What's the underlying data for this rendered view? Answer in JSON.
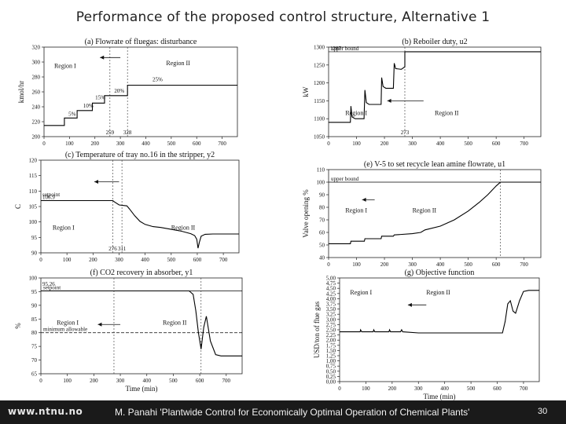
{
  "page": {
    "title": "Performance of the proposed control structure, Alternative 1",
    "footer_url": "www.ntnu.no",
    "footer_citation": "M. Panahi 'Plantwide Control for Economically Optimal Operation of Chemical Plants'",
    "page_number": "30"
  },
  "chart_data": [
    {
      "type": "line",
      "title": "(a) Flowrate of fluegas: disturbance",
      "xlabel": "",
      "ylabel": "kmol/hr",
      "xlim": [
        0,
        760
      ],
      "ylim": [
        200,
        320
      ],
      "xticks": [
        0,
        100,
        200,
        300,
        400,
        500,
        600,
        700
      ],
      "yticks": [
        200,
        220,
        240,
        260,
        280,
        300,
        320
      ],
      "series": [
        {
          "color": "#000000",
          "dash": "",
          "points": [
            [
              0,
              215
            ],
            [
              80,
              215
            ],
            [
              80,
              225
            ],
            [
              130,
              225
            ],
            [
              130,
              235
            ],
            [
              190,
              235
            ],
            [
              190,
              245
            ],
            [
              238,
              245
            ],
            [
              238,
              255
            ],
            [
              328,
              255
            ],
            [
              328,
              269
            ],
            [
              760,
              269
            ]
          ]
        }
      ],
      "vlines": [
        {
          "x": 259,
          "label": "259"
        },
        {
          "x": 328,
          "label": "328"
        }
      ],
      "hlines": [],
      "regions": [
        {
          "x": 40,
          "y": 292,
          "label": "Region I"
        },
        {
          "x": 480,
          "y": 296,
          "label": "Region II"
        }
      ],
      "arrows": [
        {
          "x1": 300,
          "x2": 220,
          "y": 306
        }
      ],
      "annotations": [
        {
          "x": 90,
          "y": 226,
          "text": "5%"
        },
        {
          "x": 148,
          "y": 237,
          "text": "10%"
        },
        {
          "x": 195,
          "y": 248,
          "text": "15%"
        },
        {
          "x": 270,
          "y": 257,
          "text": "20%"
        },
        {
          "x": 420,
          "y": 272,
          "text": "25%"
        }
      ]
    },
    {
      "type": "line",
      "title": "(b) Reboiler duty, u2",
      "xlabel": "",
      "ylabel": "kW",
      "xlim": [
        0,
        760
      ],
      "ylim": [
        1050,
        1300
      ],
      "xticks": [
        0,
        100,
        200,
        300,
        400,
        500,
        600,
        700
      ],
      "yticks": [
        1050,
        1100,
        1150,
        1200,
        1250,
        1300
      ],
      "series": [
        {
          "color": "#000000",
          "dash": "",
          "points": [
            [
              0,
              1090
            ],
            [
              78,
              1090
            ],
            [
              80,
              1135
            ],
            [
              84,
              1105
            ],
            [
              95,
              1100
            ],
            [
              127,
              1100
            ],
            [
              130,
              1180
            ],
            [
              135,
              1145
            ],
            [
              145,
              1140
            ],
            [
              188,
              1140
            ],
            [
              190,
              1215
            ],
            [
              195,
              1190
            ],
            [
              205,
              1185
            ],
            [
              232,
              1185
            ],
            [
              235,
              1255
            ],
            [
              240,
              1240
            ],
            [
              260,
              1238
            ],
            [
              273,
              1245
            ],
            [
              273,
              1287
            ],
            [
              760,
              1287
            ]
          ]
        }
      ],
      "vlines": [
        {
          "x": 273,
          "label": "273"
        }
      ],
      "hlines": [
        {
          "y": 1287,
          "label": "upper bound",
          "dash": "",
          "color": "#000000"
        }
      ],
      "regions": [
        {
          "x": 60,
          "y": 1110,
          "label": "Region I"
        },
        {
          "x": 380,
          "y": 1110,
          "label": "Region II"
        }
      ],
      "arrows": [
        {
          "x1": 340,
          "x2": 210,
          "y": 1150
        }
      ],
      "annotations": [
        {
          "x": 0,
          "y": 1287,
          "text": "1287"
        }
      ]
    },
    {
      "type": "line",
      "title": "(c) Temperature of tray no.16 in the stripper, y2",
      "xlabel": "",
      "ylabel": "C",
      "xlim": [
        0,
        760
      ],
      "ylim": [
        90,
        120
      ],
      "xticks": [
        0,
        100,
        200,
        300,
        400,
        500,
        600,
        700
      ],
      "yticks": [
        90,
        95,
        100,
        105,
        110,
        115,
        120
      ],
      "series": [
        {
          "color": "#000000",
          "dash": "",
          "points": [
            [
              0,
              106.9
            ],
            [
              276,
              106.9
            ],
            [
              282,
              106.5
            ],
            [
              300,
              105.5
            ],
            [
              330,
              105.2
            ],
            [
              340,
              104.2
            ],
            [
              360,
              102
            ],
            [
              380,
              100.2
            ],
            [
              400,
              99.2
            ],
            [
              430,
              98.5
            ],
            [
              460,
              98.2
            ],
            [
              500,
              97.6
            ],
            [
              540,
              97.0
            ],
            [
              575,
              96.2
            ],
            [
              590,
              95.6
            ],
            [
              598,
              94.4
            ],
            [
              603,
              91.5
            ],
            [
              608,
              93.4
            ],
            [
              615,
              95.4
            ],
            [
              630,
              96.0
            ],
            [
              660,
              96.1
            ],
            [
              760,
              96.1
            ]
          ]
        }
      ],
      "vlines": [
        {
          "x": 276,
          "label": "276"
        },
        {
          "x": 311,
          "label": "311"
        }
      ],
      "hlines": [],
      "regions": [
        {
          "x": 45,
          "y": 97.5,
          "label": "Region I"
        },
        {
          "x": 500,
          "y": 97.5,
          "label": "Region II"
        }
      ],
      "arrows": [
        {
          "x1": 300,
          "x2": 205,
          "y": 113
        }
      ],
      "annotations": [
        {
          "x": 0,
          "y": 107.8,
          "text": "setpoint"
        },
        {
          "x": 0,
          "y": 106.9,
          "text": "106.9"
        }
      ]
    },
    {
      "type": "line",
      "title": "(e) V-5 to set recycle lean amine flowrate, u1",
      "xlabel": "",
      "ylabel": "Valve opening %",
      "xlim": [
        0,
        760
      ],
      "ylim": [
        40,
        110
      ],
      "xticks": [
        0,
        100,
        200,
        300,
        400,
        500,
        600,
        700
      ],
      "yticks": [
        40,
        50,
        60,
        70,
        80,
        90,
        100,
        110
      ],
      "series": [
        {
          "color": "#000000",
          "dash": "",
          "points": [
            [
              0,
              51
            ],
            [
              78,
              51
            ],
            [
              80,
              53
            ],
            [
              128,
              53
            ],
            [
              130,
              55
            ],
            [
              188,
              55
            ],
            [
              190,
              57
            ],
            [
              232,
              57
            ],
            [
              235,
              58
            ],
            [
              300,
              59
            ],
            [
              330,
              60
            ],
            [
              345,
              62
            ],
            [
              400,
              65
            ],
            [
              450,
              70
            ],
            [
              500,
              77
            ],
            [
              540,
              84
            ],
            [
              570,
              90
            ],
            [
              600,
              97
            ],
            [
              615,
              100
            ],
            [
              760,
              100
            ]
          ]
        }
      ],
      "vlines": [
        {
          "x": 615,
          "label": ""
        }
      ],
      "hlines": [
        {
          "y": 100,
          "label": "upper bound",
          "dash": "",
          "color": "#000000"
        }
      ],
      "regions": [
        {
          "x": 60,
          "y": 76,
          "label": "Region I"
        },
        {
          "x": 300,
          "y": 76,
          "label": "Region II"
        }
      ],
      "arrows": [
        {
          "x1": 165,
          "x2": 120,
          "y": 86
        }
      ],
      "annotations": []
    },
    {
      "type": "line",
      "title": "(f) CO2 recovery in absorber, y1",
      "xlabel": "Time (min)",
      "ylabel": "%",
      "xlim": [
        0,
        760
      ],
      "ylim": [
        65,
        100
      ],
      "xticks": [
        0,
        100,
        200,
        300,
        400,
        500,
        600,
        700
      ],
      "yticks": [
        65,
        70,
        75,
        80,
        85,
        90,
        95,
        100
      ],
      "series": [
        {
          "color": "#000000",
          "dash": "",
          "points": [
            [
              0,
              95.26
            ],
            [
              560,
              95.26
            ],
            [
              575,
              94
            ],
            [
              585,
              88
            ],
            [
              595,
              80
            ],
            [
              605,
              74
            ],
            [
              615,
              82
            ],
            [
              625,
              86
            ],
            [
              640,
              77
            ],
            [
              660,
              72
            ],
            [
              680,
              71.5
            ],
            [
              760,
              71.5
            ]
          ]
        }
      ],
      "vlines": [
        {
          "x": 276,
          "label": ""
        },
        {
          "x": 605,
          "label": ""
        }
      ],
      "hlines": [
        {
          "y": 95.26,
          "label": "setpoint",
          "dash": "",
          "color": "#000000"
        },
        {
          "y": 80,
          "label": "minimum allowable",
          "dash": "4,2",
          "color": "#000000"
        }
      ],
      "regions": [
        {
          "x": 60,
          "y": 83,
          "label": "Region I"
        },
        {
          "x": 460,
          "y": 83,
          "label": "Region II"
        }
      ],
      "arrows": [
        {
          "x1": 300,
          "x2": 215,
          "y": 83
        }
      ],
      "annotations": [
        {
          "x": 0,
          "y": 96.6,
          "text": "95.26"
        }
      ]
    },
    {
      "type": "line",
      "title": "(g) Objective function",
      "xlabel": "Time (min)",
      "ylabel": "USD/ton of flue gas",
      "xlim": [
        0,
        760
      ],
      "ylim": [
        0,
        5
      ],
      "xticks": [
        0,
        100,
        200,
        300,
        400,
        500,
        600,
        700
      ],
      "yticks": [
        0,
        0.25,
        0.5,
        0.75,
        1,
        1.25,
        1.5,
        1.75,
        2,
        2.25,
        2.5,
        2.75,
        3,
        3.25,
        3.5,
        3.75,
        4,
        4.25,
        4.5,
        4.75,
        5
      ],
      "yticklabels": [
        "0,00",
        "0,25",
        "0,50",
        "0,75",
        "1,00",
        "1,25",
        "1,50",
        "1,75",
        "2,00",
        "2,25",
        "2,50",
        "2,75",
        "3,00",
        "3,25",
        "3,50",
        "3,75",
        "4,00",
        "4,25",
        "4,50",
        "4,75",
        "5,00"
      ],
      "series": [
        {
          "color": "#000000",
          "dash": "",
          "points": [
            [
              0,
              2.4
            ],
            [
              78,
              2.4
            ],
            [
              80,
              2.5
            ],
            [
              84,
              2.4
            ],
            [
              128,
              2.4
            ],
            [
              130,
              2.5
            ],
            [
              134,
              2.4
            ],
            [
              188,
              2.4
            ],
            [
              190,
              2.5
            ],
            [
              194,
              2.4
            ],
            [
              232,
              2.4
            ],
            [
              236,
              2.5
            ],
            [
              240,
              2.4
            ],
            [
              300,
              2.35
            ],
            [
              620,
              2.35
            ],
            [
              630,
              2.9
            ],
            [
              640,
              3.75
            ],
            [
              650,
              3.9
            ],
            [
              660,
              3.4
            ],
            [
              670,
              3.3
            ],
            [
              685,
              3.9
            ],
            [
              700,
              4.35
            ],
            [
              720,
              4.4
            ],
            [
              760,
              4.4
            ]
          ]
        }
      ],
      "vlines": [],
      "hlines": [],
      "regions": [
        {
          "x": 40,
          "y": 4.2,
          "label": "Region I"
        },
        {
          "x": 330,
          "y": 4.2,
          "label": "Region II"
        }
      ],
      "arrows": [
        {
          "x1": 330,
          "x2": 260,
          "y": 3.7
        }
      ],
      "annotations": []
    }
  ]
}
